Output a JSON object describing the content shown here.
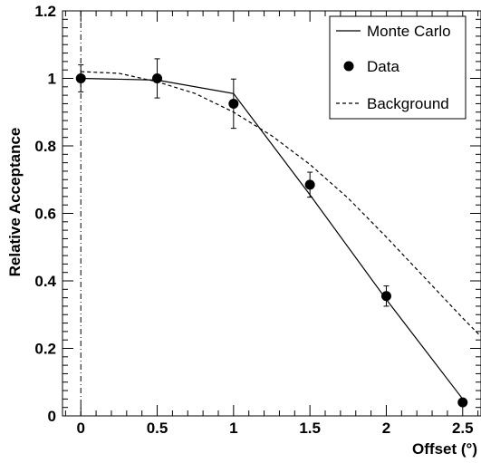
{
  "chart_data": {
    "type": "line",
    "title": "",
    "xlabel": "Offset (°)",
    "ylabel": "Relative Acceptance",
    "xlim": [
      -0.12,
      2.62
    ],
    "ylim": [
      0,
      1.2
    ],
    "grid": false,
    "legend_placement": "top-right",
    "x_ticks": [
      {
        "value": 0,
        "label": "0"
      },
      {
        "value": 0.5,
        "label": "0.5"
      },
      {
        "value": 1,
        "label": "1"
      },
      {
        "value": 1.5,
        "label": "1.5"
      },
      {
        "value": 2,
        "label": "2"
      },
      {
        "value": 2.5,
        "label": "2.5"
      }
    ],
    "y_ticks": [
      {
        "value": 0,
        "label": "0"
      },
      {
        "value": 0.2,
        "label": "0.2"
      },
      {
        "value": 0.4,
        "label": "0.4"
      },
      {
        "value": 0.6,
        "label": "0.6"
      },
      {
        "value": 0.8,
        "label": "0.8"
      },
      {
        "value": 1,
        "label": "1"
      },
      {
        "value": 1.2,
        "label": "1.2"
      }
    ],
    "reference_line_x": 0,
    "series": [
      {
        "name": "Monte Carlo",
        "style": "solid",
        "color": "#000000",
        "x": [
          0,
          0.5,
          1.0,
          1.5,
          2.0,
          2.5
        ],
        "y": [
          1.0,
          0.995,
          0.955,
          0.655,
          0.345,
          0.05
        ]
      },
      {
        "name": "Data",
        "style": "markers",
        "color": "#000000",
        "x": [
          0,
          0.5,
          1.0,
          1.5,
          2.0,
          2.5
        ],
        "y": [
          1.0,
          1.0,
          0.925,
          0.685,
          0.355,
          0.04
        ],
        "yerr": [
          0.04,
          0.058,
          0.073,
          0.037,
          0.03,
          0.0
        ]
      },
      {
        "name": "Background",
        "style": "dashed",
        "color": "#000000",
        "x": [
          0,
          0.25,
          0.5,
          0.75,
          1.0,
          1.25,
          1.5,
          1.75,
          2.0,
          2.25,
          2.5,
          2.62
        ],
        "y": [
          1.02,
          1.015,
          0.99,
          0.955,
          0.9,
          0.83,
          0.745,
          0.645,
          0.53,
          0.41,
          0.29,
          0.235
        ]
      }
    ]
  }
}
